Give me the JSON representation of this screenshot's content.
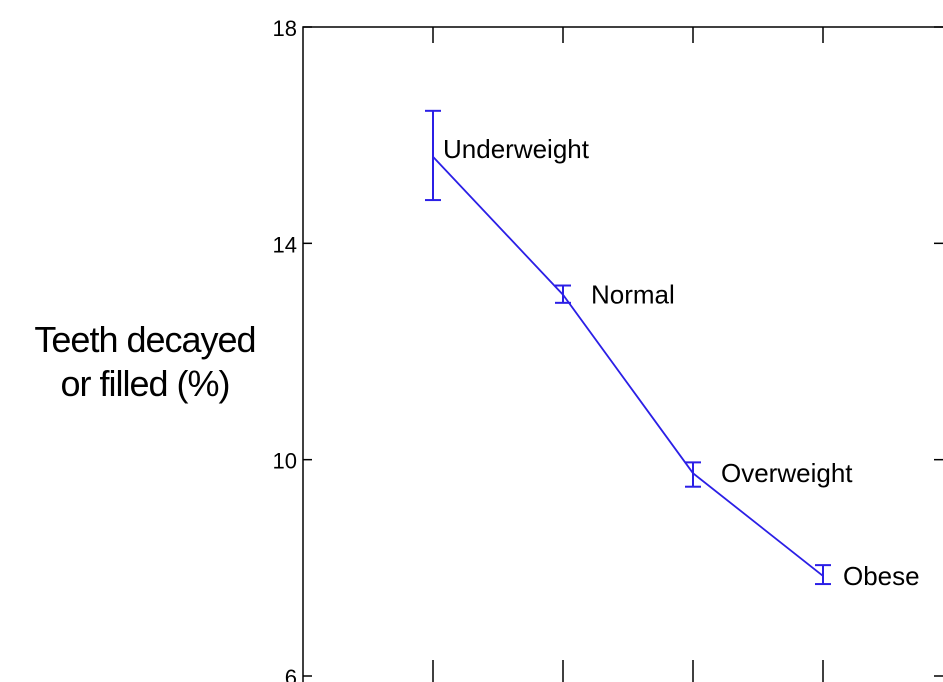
{
  "chart_data": {
    "type": "line",
    "title": "",
    "xlabel": "",
    "ylabel_lines": [
      "Teeth decayed",
      "or filled (%)"
    ],
    "ylim": [
      6,
      18
    ],
    "y_ticks": [
      6,
      10,
      14,
      18
    ],
    "y_tick_labels": [
      "6",
      "10",
      "14",
      "18"
    ],
    "grid": false,
    "line_color": "#2b1fe6",
    "categories": [
      "Underweight",
      "Normal",
      "Overweight",
      "Obese"
    ],
    "values": [
      15.6,
      13.05,
      9.75,
      7.85
    ],
    "error_low": [
      14.8,
      12.9,
      9.5,
      7.7
    ],
    "error_high": [
      16.45,
      13.22,
      9.95,
      8.05
    ]
  }
}
